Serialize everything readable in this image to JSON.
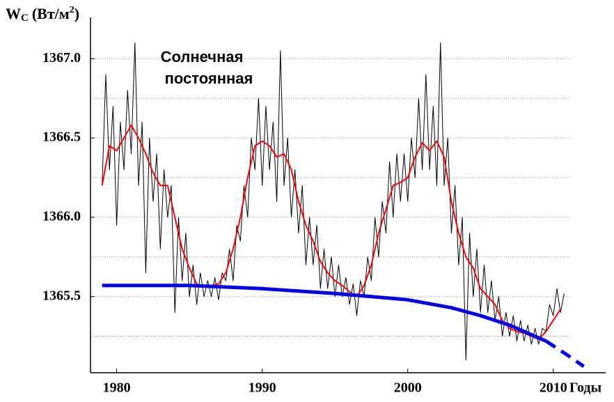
{
  "chart_data": {
    "type": "line",
    "y_label": {
      "main": "W",
      "sub": "C",
      "unit": "(Вт/м",
      "sup": "2",
      "close": ")"
    },
    "x_label": "Годы",
    "annotation": [
      "Солнечная",
      "постоянная"
    ],
    "xlim": [
      1978.2,
      2013.6
    ],
    "ylim": [
      1365.02,
      1367.26
    ],
    "xticks": [
      1980,
      1990,
      2000,
      2010
    ],
    "yticks": [
      {
        "value": 1365.5,
        "label": "1365.5"
      },
      {
        "value": 1366,
        "label": "1366.0"
      },
      {
        "value": 1366.5,
        "label": "1366.5"
      },
      {
        "value": 1367,
        "label": "1367.0"
      }
    ],
    "minor_yticks": [
      1365.25,
      1365.75,
      1366.25,
      1366.75
    ],
    "grid": true,
    "series": [
      {
        "color": "#000000",
        "width": 1,
        "style": "solid",
        "x": [
          1979,
          1979.25,
          1979.5,
          1979.75,
          1980,
          1980.25,
          1980.5,
          1980.75,
          1981,
          1981.25,
          1981.5,
          1981.75,
          1982,
          1982.25,
          1982.5,
          1982.75,
          1983,
          1983.25,
          1983.5,
          1983.75,
          1984,
          1984.25,
          1984.5,
          1984.75,
          1985,
          1985.25,
          1985.5,
          1985.75,
          1986,
          1986.25,
          1986.5,
          1986.75,
          1987,
          1987.25,
          1987.5,
          1987.75,
          1988,
          1988.25,
          1988.5,
          1988.75,
          1989,
          1989.25,
          1989.5,
          1989.75,
          1990,
          1990.25,
          1990.5,
          1990.75,
          1991,
          1991.25,
          1991.5,
          1991.75,
          1992,
          1992.25,
          1992.5,
          1992.75,
          1993,
          1993.25,
          1993.5,
          1993.75,
          1994,
          1994.25,
          1994.5,
          1994.75,
          1995,
          1995.25,
          1995.5,
          1995.75,
          1996,
          1996.25,
          1996.5,
          1996.75,
          1997,
          1997.25,
          1997.5,
          1997.75,
          1998,
          1998.25,
          1998.5,
          1998.75,
          1999,
          1999.25,
          1999.5,
          1999.75,
          2000,
          2000.25,
          2000.5,
          2000.75,
          2001,
          2001.25,
          2001.5,
          2001.75,
          2002,
          2002.25,
          2002.5,
          2002.75,
          2003,
          2003.25,
          2003.5,
          2003.75,
          2004,
          2004.25,
          2004.5,
          2004.75,
          2005,
          2005.25,
          2005.5,
          2005.75,
          2006,
          2006.25,
          2006.5,
          2006.75,
          2007,
          2007.25,
          2007.5,
          2007.75,
          2008,
          2008.25,
          2008.5,
          2008.75,
          2009,
          2009.25,
          2009.5,
          2009.75,
          2010,
          2010.25,
          2010.5,
          2010.75
        ],
        "values": [
          1366.2,
          1366.9,
          1366.3,
          1366.7,
          1365.95,
          1366.6,
          1366.3,
          1366.8,
          1366.4,
          1367.1,
          1366.2,
          1366.6,
          1365.65,
          1366.5,
          1366.1,
          1366.4,
          1365.8,
          1366.3,
          1366.0,
          1366.2,
          1365.4,
          1366.0,
          1365.6,
          1365.9,
          1365.5,
          1365.7,
          1365.45,
          1365.65,
          1365.5,
          1365.6,
          1365.5,
          1365.62,
          1365.48,
          1365.65,
          1365.6,
          1365.8,
          1365.6,
          1365.95,
          1365.85,
          1366.2,
          1366.0,
          1366.5,
          1366.3,
          1366.75,
          1366.2,
          1366.7,
          1366.3,
          1366.6,
          1366.1,
          1367.05,
          1366.2,
          1366.5,
          1366.0,
          1366.3,
          1365.9,
          1366.2,
          1365.7,
          1366.0,
          1365.7,
          1365.95,
          1365.55,
          1365.8,
          1365.55,
          1365.75,
          1365.5,
          1365.7,
          1365.5,
          1365.62,
          1365.45,
          1365.58,
          1365.38,
          1365.6,
          1365.5,
          1365.75,
          1365.6,
          1366.0,
          1365.75,
          1366.1,
          1365.9,
          1366.35,
          1366.0,
          1366.4,
          1366.1,
          1366.4,
          1366.1,
          1366.5,
          1366.25,
          1366.75,
          1366.3,
          1366.9,
          1366.3,
          1366.7,
          1366.2,
          1367.1,
          1366.2,
          1366.5,
          1365.9,
          1366.2,
          1365.7,
          1366.0,
          1365.1,
          1365.9,
          1365.5,
          1365.8,
          1365.4,
          1365.7,
          1365.4,
          1365.6,
          1365.35,
          1365.5,
          1365.25,
          1365.4,
          1365.25,
          1365.38,
          1365.22,
          1365.35,
          1365.22,
          1365.32,
          1365.2,
          1365.3,
          1365.2,
          1365.3,
          1365.28,
          1365.45,
          1365.38,
          1365.55,
          1365.4,
          1365.52
        ]
      },
      {
        "color": "#ff0000",
        "width": 2,
        "style": "solid",
        "x": [
          1979,
          1979.5,
          1980,
          1980.5,
          1981,
          1981.5,
          1982,
          1982.5,
          1983,
          1983.5,
          1984,
          1984.5,
          1985,
          1985.5,
          1986,
          1986.5,
          1987,
          1987.5,
          1988,
          1988.5,
          1989,
          1989.5,
          1990,
          1990.5,
          1991,
          1991.5,
          1992,
          1992.5,
          1993,
          1993.5,
          1994,
          1994.5,
          1995,
          1995.5,
          1996,
          1996.5,
          1997,
          1997.5,
          1998,
          1998.5,
          1999,
          1999.5,
          2000,
          2000.5,
          2001,
          2001.5,
          2002,
          2002.5,
          2003,
          2003.5,
          2004,
          2004.5,
          2005,
          2005.5,
          2006,
          2006.5,
          2007,
          2007.5,
          2008,
          2008.5,
          2009,
          2009.5,
          2010,
          2010.5
        ],
        "values": [
          1366.2,
          1366.45,
          1366.42,
          1366.5,
          1366.58,
          1366.5,
          1366.4,
          1366.28,
          1366.2,
          1366.2,
          1366.0,
          1365.8,
          1365.68,
          1365.58,
          1365.56,
          1365.57,
          1365.58,
          1365.65,
          1365.8,
          1366.0,
          1366.25,
          1366.45,
          1366.48,
          1366.45,
          1366.38,
          1366.4,
          1366.3,
          1366.1,
          1365.95,
          1365.85,
          1365.72,
          1365.65,
          1365.6,
          1365.57,
          1365.53,
          1365.5,
          1365.57,
          1365.7,
          1365.9,
          1366.05,
          1366.2,
          1366.22,
          1366.25,
          1366.38,
          1366.47,
          1366.42,
          1366.48,
          1366.38,
          1366.1,
          1365.9,
          1365.75,
          1365.68,
          1365.55,
          1365.5,
          1365.45,
          1365.35,
          1365.3,
          1365.28,
          1365.27,
          1365.25,
          1365.23,
          1365.28,
          1365.35,
          1365.42
        ]
      },
      {
        "color": "#0000ee",
        "width": 5,
        "style": "solid",
        "x": [
          1979,
          1985,
          1990,
          1995,
          2000,
          2003,
          2005,
          2007,
          2009.5
        ],
        "values": [
          1365.57,
          1365.57,
          1365.55,
          1365.52,
          1365.48,
          1365.43,
          1365.38,
          1365.32,
          1365.22
        ]
      },
      {
        "color": "#0000ee",
        "width": 5,
        "style": "dashed",
        "x": [
          2009.5,
          2011,
          2012.1
        ],
        "values": [
          1365.22,
          1365.13,
          1365.06
        ]
      }
    ]
  }
}
